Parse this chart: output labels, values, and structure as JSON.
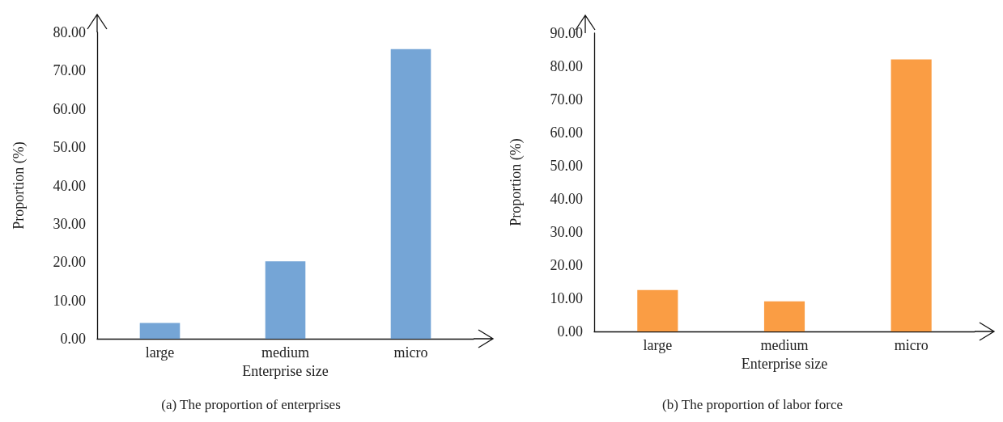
{
  "chart_data": [
    {
      "type": "bar",
      "title": "(a) The proportion of enterprises",
      "xlabel": "Enterprise size",
      "ylabel": "Proportion (%)",
      "categories": [
        "large",
        "medium",
        "micro"
      ],
      "values": [
        4.1,
        20.2,
        75.6
      ],
      "color": "#75a5d6",
      "ylim": [
        0,
        80
      ],
      "yticks": [
        {
          "value": 0,
          "label": "0.00"
        },
        {
          "value": 10,
          "label": "10.00"
        },
        {
          "value": 20,
          "label": "20.00"
        },
        {
          "value": 30,
          "label": "30.00"
        },
        {
          "value": 40,
          "label": "40.00"
        },
        {
          "value": 50,
          "label": "50.00"
        },
        {
          "value": 60,
          "label": "60.00"
        },
        {
          "value": 70,
          "label": "70.00"
        },
        {
          "value": 80,
          "label": "80.00"
        }
      ],
      "grid": false
    },
    {
      "type": "bar",
      "title": "(b) The proportion of labor force",
      "xlabel": "Enterprise size",
      "ylabel": "Proportion (%)",
      "categories": [
        "large",
        "medium",
        "micro"
      ],
      "values": [
        12.5,
        9.1,
        82.1
      ],
      "color": "#fa9d44",
      "ylim": [
        0,
        90
      ],
      "yticks": [
        {
          "value": 0,
          "label": "0.00"
        },
        {
          "value": 10,
          "label": "10.00"
        },
        {
          "value": 20,
          "label": "20.00"
        },
        {
          "value": 30,
          "label": "30.00"
        },
        {
          "value": 40,
          "label": "40.00"
        },
        {
          "value": 50,
          "label": "50.00"
        },
        {
          "value": 60,
          "label": "60.00"
        },
        {
          "value": 70,
          "label": "70.00"
        },
        {
          "value": 80,
          "label": "80.00"
        },
        {
          "value": 90,
          "label": "90.00"
        }
      ],
      "grid": false
    }
  ]
}
